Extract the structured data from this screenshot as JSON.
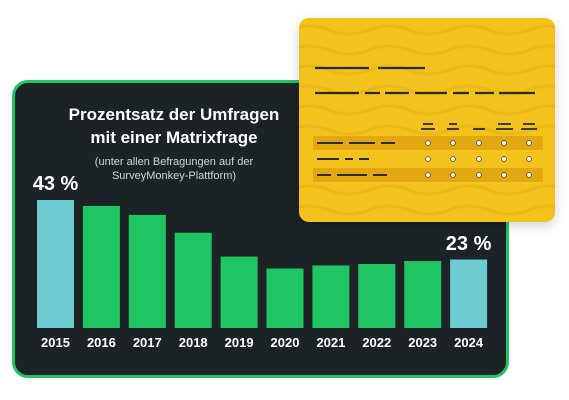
{
  "chart_data": {
    "type": "bar",
    "title": "Prozentsatz der Umfragen mit einer Matrixfrage",
    "title_lines": [
      "Prozentsatz der Umfragen",
      "mit einer Matrixfrage"
    ],
    "subtitle": "(unter allen Befragungen auf der SurveyMonkey-Plattform)",
    "subtitle_lines": [
      "(unter allen Befragungen auf der",
      "SurveyMonkey-Plattform)"
    ],
    "categories": [
      "2015",
      "2016",
      "2017",
      "2018",
      "2019",
      "2020",
      "2021",
      "2022",
      "2023",
      "2024"
    ],
    "values": [
      43,
      41,
      38,
      32,
      24,
      20,
      21,
      21.5,
      22.5,
      23
    ],
    "data_labels": {
      "2015": "43 %",
      "2024": "23 %"
    },
    "highlighted_categories": [
      "2015",
      "2024"
    ],
    "ylim": [
      0,
      43
    ],
    "grid": false,
    "legend": "none",
    "colors": {
      "bar": "#1fc563",
      "highlight_bar": "#6bcbd1",
      "background": "#1c2326",
      "border": "#1fc563",
      "text": "#ffffff"
    }
  },
  "illustration": {
    "name": "matrix-question-card",
    "colors": {
      "card": "#f3c21d",
      "lines": "#2a2a2a",
      "rows": "#e2a812"
    }
  }
}
